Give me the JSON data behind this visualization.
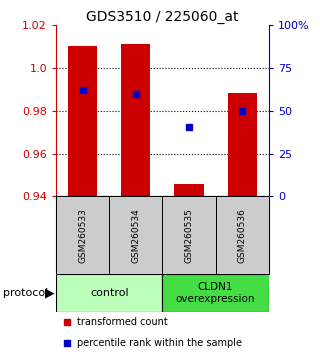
{
  "title": "GDS3510 / 225060_at",
  "samples": [
    "GSM260533",
    "GSM260534",
    "GSM260535",
    "GSM260536"
  ],
  "groups": [
    {
      "name": "control",
      "color": "#bbffbb"
    },
    {
      "name": "CLDN1\noverexpression",
      "color": "#44dd44"
    }
  ],
  "bar_tops": [
    1.01,
    1.011,
    0.946,
    0.988
  ],
  "bar_bottom": 0.94,
  "percentile_values": [
    0.9895,
    0.9878,
    0.9725,
    0.98
  ],
  "ylim": [
    0.94,
    1.02
  ],
  "y_ticks_left": [
    0.94,
    0.96,
    0.98,
    1.0,
    1.02
  ],
  "y_ticks_right": [
    0,
    25,
    50,
    75,
    100
  ],
  "y_right_labels": [
    "0",
    "25",
    "50",
    "75",
    "100%"
  ],
  "bar_color": "#cc0000",
  "percentile_color": "#0000cc",
  "background_color": "#ffffff",
  "left_tick_color": "#cc0000",
  "right_tick_color": "#0000bb",
  "legend_red_label": "transformed count",
  "legend_blue_label": "percentile rank within the sample",
  "protocol_label": "protocol",
  "sample_bg_color": "#cccccc",
  "bar_width": 0.55
}
